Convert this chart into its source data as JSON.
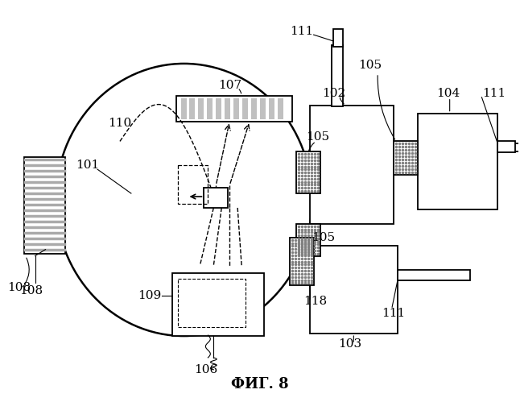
{
  "title": "ФИГ. 8",
  "bg": "#ffffff",
  "lc": "#000000",
  "fig_width": 6.46,
  "fig_height": 4.99,
  "dpi": 100
}
